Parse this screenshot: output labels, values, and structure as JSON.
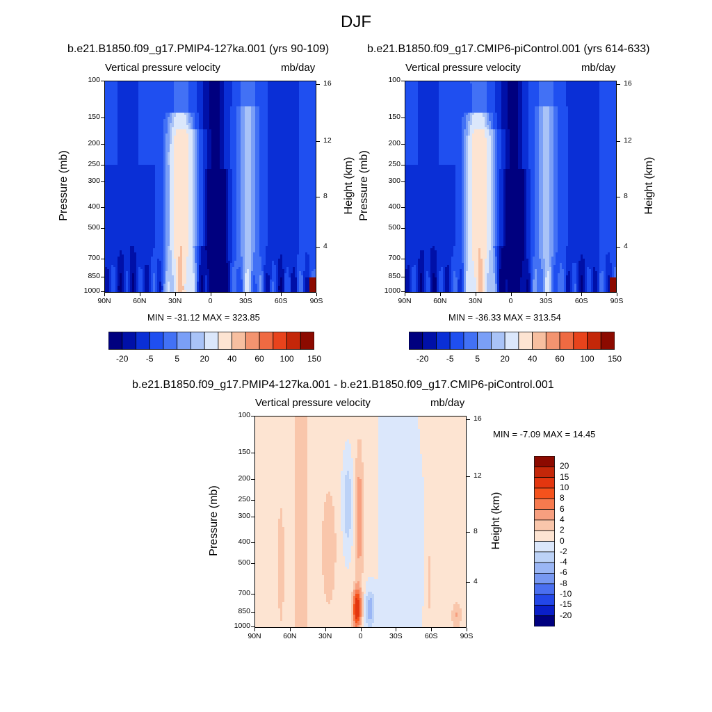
{
  "title": "DJF",
  "panels": [
    {
      "case_title": "b.e21.B1850.f09_g17.PMIP4-127ka.001 (yrs 90-109)",
      "left_title": "Vertical pressure velocity",
      "right_title": "mb/day",
      "minmax": "MIN = -31.12  MAX = 323.85"
    },
    {
      "case_title": "b.e21.B1850.f09_g17.CMIP6-piControl.001 (yrs 614-633)",
      "left_title": "Vertical pressure velocity",
      "right_title": "mb/day",
      "minmax": "MIN = -36.33  MAX = 313.54"
    },
    {
      "case_title": "b.e21.B1850.f09_g17.PMIP4-127ka.001 - b.e21.B1850.f09_g17.CMIP6-piControl.001",
      "left_title": "Vertical pressure velocity",
      "right_title": "mb/day",
      "minmax": "MIN =  -7.09  MAX =  14.45"
    }
  ],
  "axes": {
    "ylabel": "Pressure (mb)",
    "y2label": "Height (km)",
    "pressure_ticks": [
      "100",
      "150",
      "200",
      "250",
      "300",
      "400",
      "500",
      "700",
      "850",
      "1000"
    ],
    "height_ticks": [
      "16",
      "12",
      "8",
      "4"
    ],
    "lat_ticks": [
      "90N",
      "60N",
      "30N",
      "0",
      "30S",
      "60S",
      "90S"
    ]
  },
  "colorbars": {
    "full_labels": [
      "-20",
      "-5",
      "5",
      "20",
      "40",
      "60",
      "100",
      "150"
    ],
    "full_colors": [
      "#00007f",
      "#0010a8",
      "#0a2fd6",
      "#1f4ff0",
      "#4271f5",
      "#7a9ff7",
      "#a9c3f7",
      "#dbe7fb",
      "#fde4d2",
      "#f7bfa0",
      "#f39470",
      "#ef6a42",
      "#e8431c",
      "#c42709",
      "#8c0a00"
    ],
    "diff_labels": [
      "20",
      "15",
      "10",
      "8",
      "6",
      "4",
      "2",
      "0",
      "-2",
      "-4",
      "-6",
      "-8",
      "-10",
      "-15",
      "-20"
    ],
    "diff_colors": [
      "#8c0a00",
      "#c42709",
      "#e3360f",
      "#f5521c",
      "#f77a4e",
      "#f79f7f",
      "#f9c6ab",
      "#fde4d2",
      "#dbe7fb",
      "#bcd2f7",
      "#9ab6f5",
      "#7798f2",
      "#4a6ff0",
      "#2347e8",
      "#0a1fc8",
      "#00007f"
    ]
  },
  "chart_data": [
    {
      "type": "heatmap",
      "title": "b.e21.B1850.f09_g17.PMIP4-127ka.001 (yrs 90-109)",
      "variable": "Vertical pressure velocity",
      "units": "mb/day",
      "x": [
        "90N",
        "60N",
        "30N",
        "0",
        "30S",
        "60S",
        "90S"
      ],
      "y": [
        100,
        150,
        200,
        250,
        300,
        400,
        500,
        700,
        850,
        1000
      ],
      "y2": [
        16,
        12,
        8,
        4
      ],
      "min": -31.12,
      "max": 323.85,
      "features": [
        {
          "lat": 26,
          "value": 22,
          "p_range": [
            150,
            950
          ]
        },
        {
          "lat": 18,
          "value": 10,
          "p_range": [
            180,
            980
          ]
        },
        {
          "lat": -6,
          "value": -30,
          "p_range": [
            280,
            1000
          ]
        },
        {
          "lat": -32,
          "value": 7,
          "p_range": [
            120,
            950
          ]
        },
        {
          "lat": 58,
          "value": -12,
          "p_range": [
            600,
            1000
          ]
        },
        {
          "lat": 80,
          "value": -9,
          "p_range": [
            650,
            1000
          ]
        },
        {
          "lat": -55,
          "value": -10,
          "p_range": [
            250,
            900
          ]
        },
        {
          "lat": -85,
          "value": 150,
          "p_range": [
            850,
            1000
          ]
        }
      ]
    },
    {
      "type": "heatmap",
      "title": "b.e21.B1850.f09_g17.CMIP6-piControl.001 (yrs 614-633)",
      "variable": "Vertical pressure velocity",
      "units": "mb/day",
      "x": [
        "90N",
        "60N",
        "30N",
        "0",
        "30S",
        "60S",
        "90S"
      ],
      "y": [
        100,
        150,
        200,
        250,
        300,
        400,
        500,
        700,
        850,
        1000
      ],
      "y2": [
        16,
        12,
        8,
        4
      ],
      "min": -36.33,
      "max": 313.54,
      "features": [
        {
          "lat": 28,
          "value": 24,
          "p_range": [
            150,
            950
          ]
        },
        {
          "lat": 20,
          "value": 12,
          "p_range": [
            180,
            980
          ]
        },
        {
          "lat": -4,
          "value": -33,
          "p_range": [
            250,
            1000
          ]
        },
        {
          "lat": -30,
          "value": 8,
          "p_range": [
            120,
            950
          ]
        },
        {
          "lat": 58,
          "value": -12,
          "p_range": [
            600,
            1000
          ]
        },
        {
          "lat": 80,
          "value": -9,
          "p_range": [
            650,
            1000
          ]
        },
        {
          "lat": -55,
          "value": -10,
          "p_range": [
            250,
            900
          ]
        },
        {
          "lat": -85,
          "value": 150,
          "p_range": [
            850,
            1000
          ]
        }
      ]
    },
    {
      "type": "heatmap",
      "title": "b.e21.B1850.f09_g17.PMIP4-127ka.001 - b.e21.B1850.f09_g17.CMIP6-piControl.001",
      "variable": "Vertical pressure velocity",
      "units": "mb/day",
      "x": [
        "90N",
        "60N",
        "30N",
        "0",
        "30S",
        "60S",
        "90S"
      ],
      "y": [
        100,
        150,
        200,
        250,
        300,
        400,
        500,
        700,
        850,
        1000
      ],
      "y2": [
        16,
        12,
        8,
        4
      ],
      "min": -7.09,
      "max": 14.45,
      "features": [
        {
          "lat": 45,
          "value": 1,
          "p_range": [
            100,
            1000
          ]
        },
        {
          "lat": 28,
          "value": 3,
          "p_range": [
            250,
            650
          ]
        },
        {
          "lat": 12,
          "value": -5,
          "p_range": [
            180,
            600
          ]
        },
        {
          "lat": 0,
          "value": 8,
          "p_range": [
            150,
            700
          ]
        },
        {
          "lat": 4,
          "value": 14,
          "p_range": [
            700,
            950
          ]
        },
        {
          "lat": -8,
          "value": -6,
          "p_range": [
            650,
            950
          ]
        },
        {
          "lat": -30,
          "value": -1,
          "p_range": [
            100,
            1000
          ]
        },
        {
          "lat": -60,
          "value": 2,
          "p_range": [
            300,
            900
          ]
        },
        {
          "lat": -80,
          "value": 4,
          "p_range": [
            750,
            950
          ]
        }
      ]
    }
  ]
}
